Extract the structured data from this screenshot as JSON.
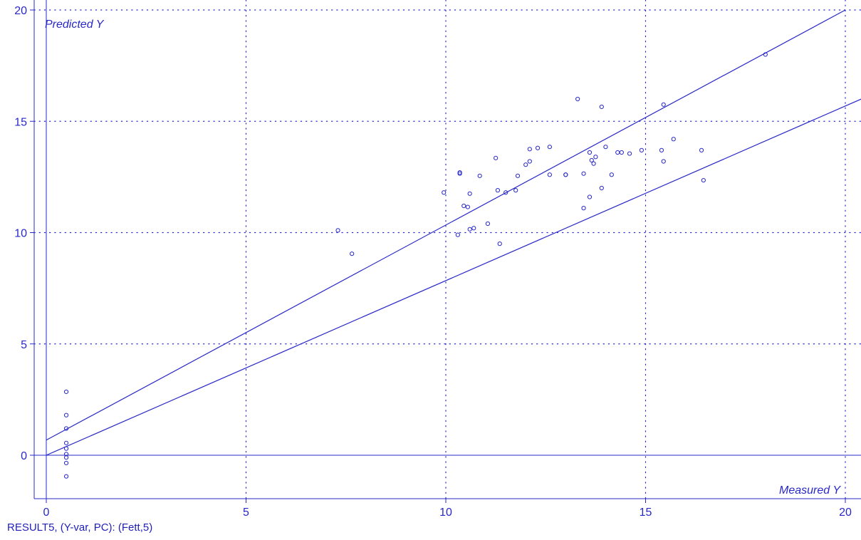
{
  "chart_data": {
    "type": "scatter",
    "xlabel": "Measured Y",
    "ylabel": "Predicted Y",
    "xlim": [
      -0.3,
      20.5
    ],
    "ylim": [
      -2,
      20
    ],
    "x_ticks": [
      0,
      5,
      10,
      15,
      20
    ],
    "y_ticks": [
      0,
      5,
      10,
      15,
      20
    ],
    "x_tick_labels": [
      "0",
      "5",
      "10",
      "15",
      "20"
    ],
    "y_tick_labels": [
      "0",
      "5",
      "10",
      "15",
      "20"
    ],
    "grid": true,
    "series": [
      {
        "points": [
          [
            0.5,
            2.85
          ],
          [
            0.5,
            1.8
          ],
          [
            0.5,
            1.2
          ],
          [
            0.5,
            0.55
          ],
          [
            0.5,
            0.3
          ],
          [
            0.5,
            0.05
          ],
          [
            0.5,
            -0.1
          ],
          [
            0.5,
            -0.35
          ],
          [
            0.5,
            -0.95
          ],
          [
            7.3,
            10.1
          ],
          [
            7.65,
            9.05
          ],
          [
            9.95,
            11.8
          ],
          [
            10.3,
            9.9
          ],
          [
            10.35,
            12.7
          ],
          [
            10.35,
            12.65
          ],
          [
            10.45,
            11.2
          ],
          [
            10.55,
            11.15
          ],
          [
            10.6,
            10.15
          ],
          [
            10.6,
            11.75
          ],
          [
            10.7,
            10.2
          ],
          [
            10.85,
            12.55
          ],
          [
            11.05,
            10.4
          ],
          [
            11.25,
            13.35
          ],
          [
            11.3,
            11.9
          ],
          [
            11.35,
            9.5
          ],
          [
            11.5,
            11.8
          ],
          [
            11.75,
            11.9
          ],
          [
            11.8,
            12.55
          ],
          [
            12.0,
            13.05
          ],
          [
            12.1,
            13.2
          ],
          [
            12.1,
            13.75
          ],
          [
            12.3,
            13.8
          ],
          [
            12.6,
            13.85
          ],
          [
            12.6,
            12.6
          ],
          [
            13.0,
            12.6
          ],
          [
            13.0,
            12.6
          ],
          [
            13.3,
            16.0
          ],
          [
            13.45,
            12.65
          ],
          [
            13.45,
            11.1
          ],
          [
            13.6,
            13.6
          ],
          [
            13.6,
            11.6
          ],
          [
            13.65,
            13.25
          ],
          [
            13.7,
            13.1
          ],
          [
            13.75,
            13.4
          ],
          [
            13.9,
            15.65
          ],
          [
            13.9,
            12.0
          ],
          [
            14.0,
            13.85
          ],
          [
            14.15,
            12.6
          ],
          [
            14.3,
            13.6
          ],
          [
            14.4,
            13.6
          ],
          [
            14.6,
            13.55
          ],
          [
            14.9,
            13.7
          ],
          [
            15.4,
            13.7
          ],
          [
            15.45,
            13.2
          ],
          [
            15.45,
            15.75
          ],
          [
            15.7,
            14.2
          ],
          [
            16.4,
            13.7
          ],
          [
            16.45,
            12.35
          ],
          [
            18.0,
            18.0
          ]
        ]
      }
    ],
    "lines": [
      {
        "kind": "target",
        "x": [
          0,
          20.4
        ],
        "y": [
          0,
          16.0
        ]
      },
      {
        "kind": "regression",
        "x": [
          0,
          20.0
        ],
        "y": [
          0.68,
          20.0
        ]
      }
    ]
  },
  "footer": {
    "label": "RESULT5, (Y-var, PC): (Fett,5)"
  }
}
